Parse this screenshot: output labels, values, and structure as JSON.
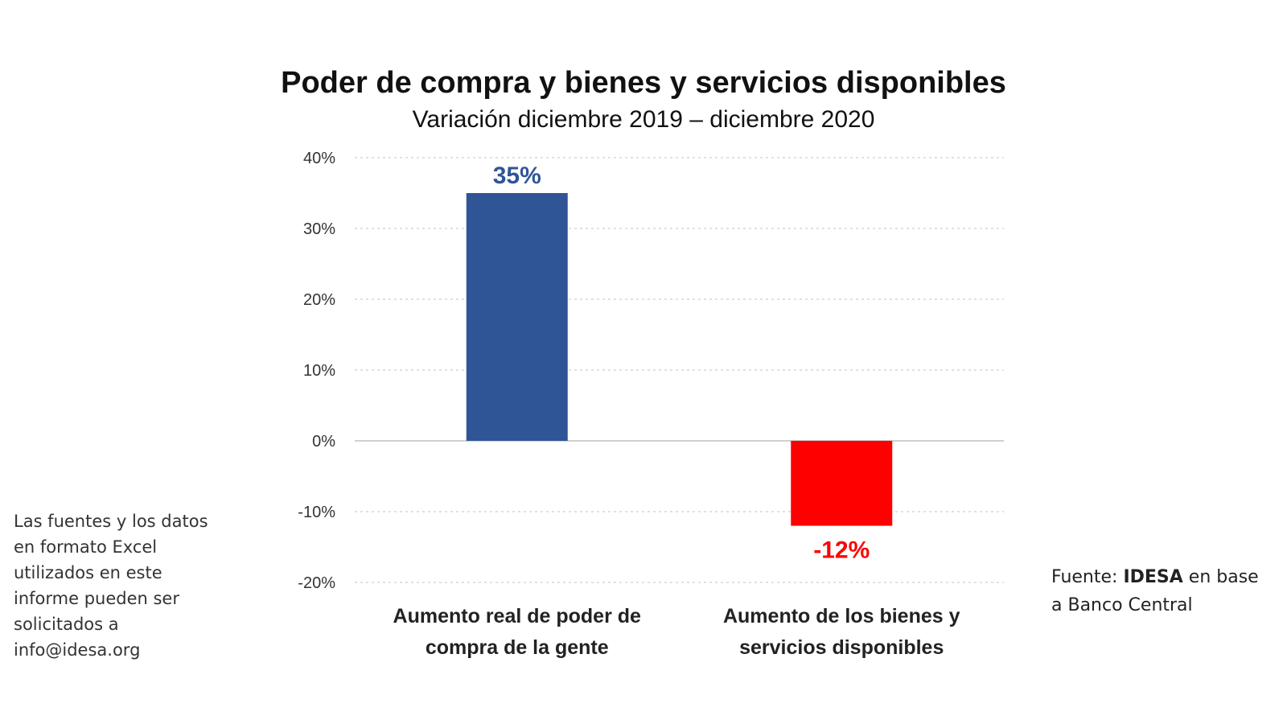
{
  "title": "Poder de compra y bienes y servicios disponibles",
  "subtitle": "Variación diciembre 2019 – diciembre 2020",
  "side_note": "Las fuentes y los datos en formato Excel utilizados en este informe pueden ser solicitados a info@idesa.org",
  "source": {
    "prefix": "Fuente: ",
    "org": "IDESA",
    "suffix": " en base a Banco Central"
  },
  "chart_data": {
    "type": "bar",
    "title": "Poder de compra y bienes y servicios disponibles",
    "subtitle": "Variación diciembre 2019 – diciembre 2020",
    "categories": [
      [
        "Aumento real de poder de",
        "compra de la gente"
      ],
      [
        "Aumento de los bienes y",
        "servicios disponibles"
      ]
    ],
    "values": [
      35,
      -12
    ],
    "data_labels": [
      "35%",
      "-12%"
    ],
    "colors": [
      "#2F5597",
      "#FF0000"
    ],
    "label_colors": [
      "#2F5597",
      "#FF0000"
    ],
    "ylim": [
      -20,
      40
    ],
    "yticks": [
      40,
      30,
      20,
      10,
      0,
      -10,
      -20
    ],
    "ytick_labels": [
      "40%",
      "30%",
      "20%",
      "10%",
      "0%",
      "-10%",
      "-20%"
    ],
    "grid": true,
    "grid_style": "dashed",
    "legend": "none"
  }
}
